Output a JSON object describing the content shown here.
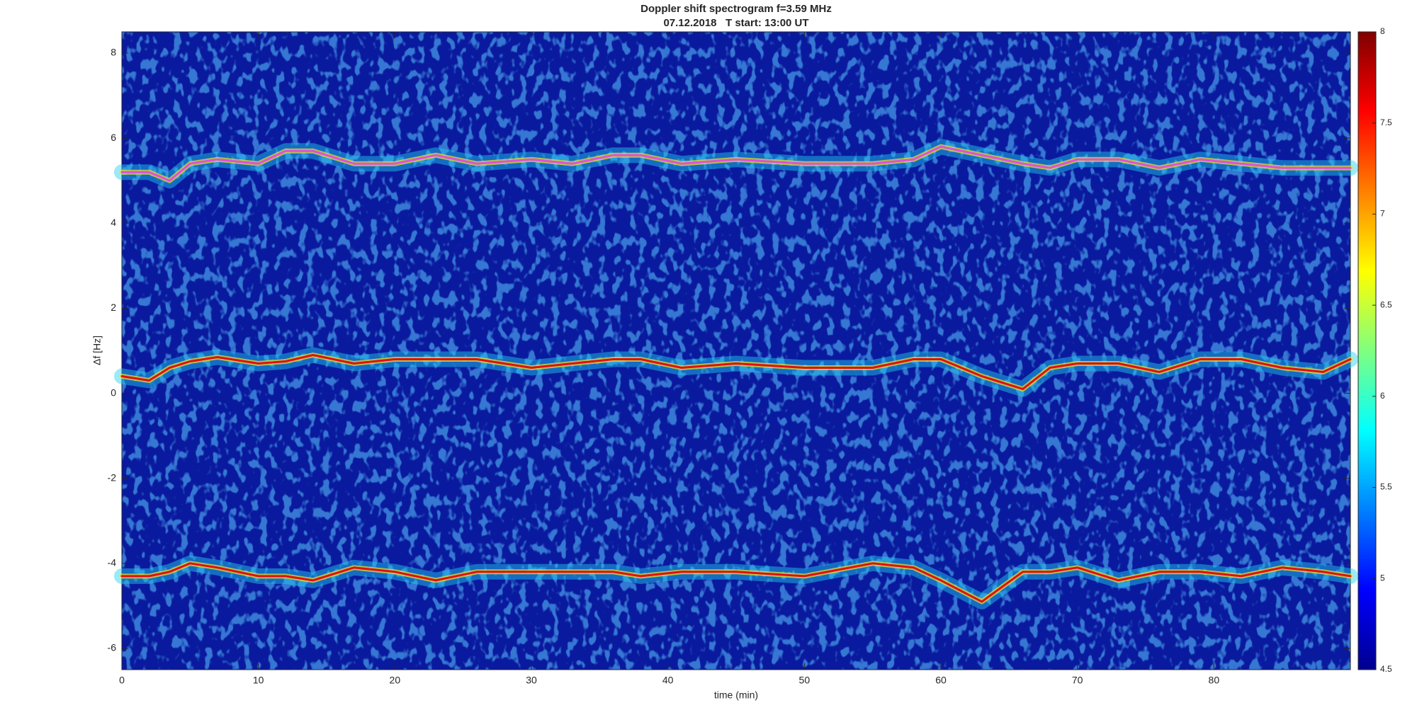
{
  "chart_data": {
    "type": "spectrogram",
    "title": "Doppler shift spectrogram f=3.59 MHz",
    "subtitle": "07.12.2018   T start: 13:00 UT",
    "x_label": "time (min)",
    "y_label": "Δf [Hz]",
    "xlim": [
      0,
      90
    ],
    "xticks": [
      0,
      10,
      20,
      30,
      40,
      50,
      60,
      70,
      80
    ],
    "ylim": [
      -6.5,
      8.5
    ],
    "yticks": [
      -6,
      -4,
      -2,
      0,
      2,
      4,
      6,
      8
    ],
    "colormap": "jet",
    "clim": [
      4.5,
      8
    ],
    "cticks": [
      4.5,
      5,
      5.5,
      6,
      6.5,
      7,
      7.5,
      8
    ],
    "x": [
      0,
      2,
      3.5,
      5,
      7,
      10,
      12,
      14,
      17,
      20,
      23,
      26,
      30,
      33,
      36,
      38,
      41,
      45,
      50,
      55,
      58,
      60,
      63,
      66,
      68,
      70,
      73,
      76,
      79,
      82,
      85,
      88,
      90
    ],
    "series": [
      {
        "color": "#e050d8",
        "values": [
          5.2,
          5.2,
          5.0,
          5.4,
          5.5,
          5.4,
          5.7,
          5.7,
          5.4,
          5.4,
          5.6,
          5.4,
          5.5,
          5.4,
          5.6,
          5.6,
          5.4,
          5.5,
          5.4,
          5.4,
          5.5,
          5.8,
          5.6,
          5.4,
          5.3,
          5.5,
          5.5,
          5.3,
          5.5,
          5.4,
          5.3,
          5.3,
          5.3
        ]
      },
      {
        "color": "#e01010",
        "values": [
          0.4,
          0.3,
          0.6,
          0.75,
          0.85,
          0.7,
          0.75,
          0.9,
          0.7,
          0.8,
          0.8,
          0.8,
          0.6,
          0.7,
          0.8,
          0.8,
          0.6,
          0.7,
          0.6,
          0.6,
          0.8,
          0.8,
          0.4,
          0.1,
          0.6,
          0.7,
          0.7,
          0.5,
          0.8,
          0.8,
          0.6,
          0.5,
          0.8
        ]
      },
      {
        "color": "#e01010",
        "values": [
          -4.3,
          -4.3,
          -4.2,
          -4.0,
          -4.1,
          -4.3,
          -4.3,
          -4.4,
          -4.1,
          -4.2,
          -4.4,
          -4.2,
          -4.2,
          -4.2,
          -4.2,
          -4.3,
          -4.2,
          -4.2,
          -4.3,
          -4.0,
          -4.1,
          -4.4,
          -4.9,
          -4.2,
          -4.2,
          -4.1,
          -4.4,
          -4.2,
          -4.2,
          -4.3,
          -4.1,
          -4.2,
          -4.3
        ]
      }
    ]
  }
}
